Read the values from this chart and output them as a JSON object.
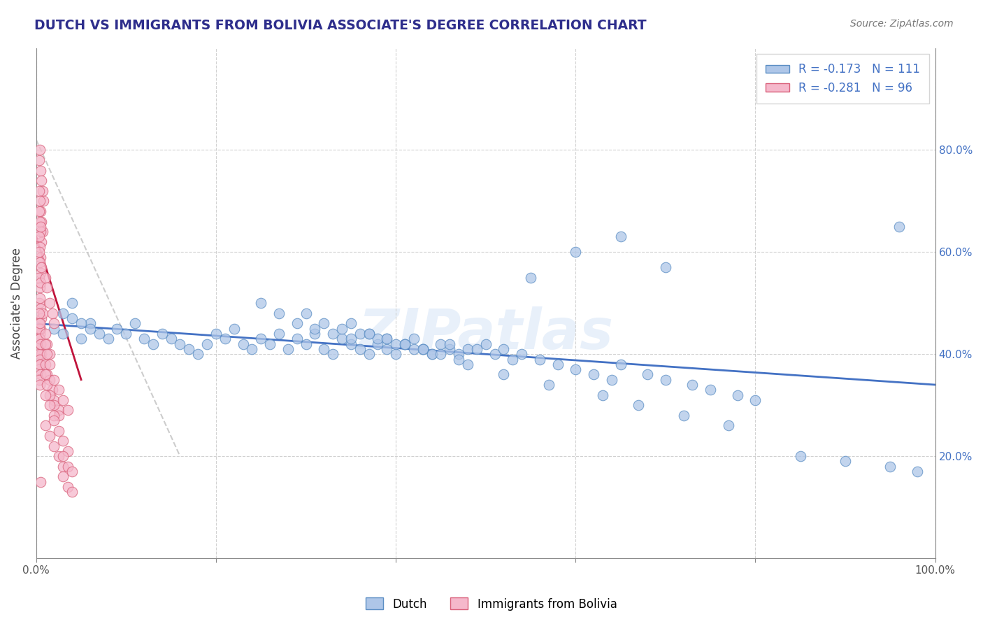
{
  "title": "DUTCH VS IMMIGRANTS FROM BOLIVIA ASSOCIATE'S DEGREE CORRELATION CHART",
  "source": "Source: ZipAtlas.com",
  "ylabel": "Associate's Degree",
  "legend_label1": "Dutch",
  "legend_label2": "Immigrants from Bolivia",
  "R1": -0.173,
  "N1": 111,
  "R2": -0.281,
  "N2": 96,
  "xlim": [
    0.0,
    1.0
  ],
  "ylim": [
    0.0,
    1.0
  ],
  "yticks": [
    0.2,
    0.4,
    0.6,
    0.8
  ],
  "ytick_labels": [
    "20.0%",
    "40.0%",
    "60.0%",
    "80.0%"
  ],
  "xtick_labels": [
    "0.0%",
    "",
    "",
    "",
    "",
    "100.0%"
  ],
  "color_dutch_fill": "#aec6e8",
  "color_dutch_edge": "#5b8ec4",
  "color_bolivia_fill": "#f5b8cb",
  "color_bolivia_edge": "#d9607a",
  "color_line_dutch": "#4472c4",
  "color_line_bolivia": "#c0143c",
  "color_dashed": "#b8b8b8",
  "background_color": "#ffffff",
  "grid_color": "#cccccc",
  "watermark": "ZIPatlas",
  "title_color": "#2e2e8c",
  "dutch_x": [
    0.02,
    0.03,
    0.04,
    0.05,
    0.06,
    0.03,
    0.04,
    0.05,
    0.06,
    0.07,
    0.08,
    0.09,
    0.1,
    0.11,
    0.12,
    0.13,
    0.14,
    0.15,
    0.16,
    0.17,
    0.18,
    0.19,
    0.2,
    0.21,
    0.22,
    0.23,
    0.24,
    0.25,
    0.26,
    0.27,
    0.28,
    0.29,
    0.3,
    0.31,
    0.32,
    0.33,
    0.34,
    0.35,
    0.36,
    0.37,
    0.38,
    0.39,
    0.4,
    0.41,
    0.42,
    0.43,
    0.44,
    0.45,
    0.46,
    0.47,
    0.25,
    0.27,
    0.29,
    0.31,
    0.33,
    0.35,
    0.37,
    0.39,
    0.41,
    0.43,
    0.3,
    0.32,
    0.34,
    0.36,
    0.38,
    0.4,
    0.42,
    0.44,
    0.46,
    0.48,
    0.35,
    0.37,
    0.39,
    0.41,
    0.43,
    0.45,
    0.47,
    0.49,
    0.51,
    0.53,
    0.5,
    0.52,
    0.54,
    0.56,
    0.58,
    0.6,
    0.62,
    0.64,
    0.65,
    0.68,
    0.7,
    0.73,
    0.75,
    0.78,
    0.8,
    0.85,
    0.9,
    0.95,
    0.98,
    0.96,
    0.55,
    0.6,
    0.65,
    0.7,
    0.48,
    0.52,
    0.57,
    0.63,
    0.67,
    0.72,
    0.77
  ],
  "dutch_y": [
    0.45,
    0.44,
    0.47,
    0.43,
    0.46,
    0.48,
    0.5,
    0.46,
    0.45,
    0.44,
    0.43,
    0.45,
    0.44,
    0.46,
    0.43,
    0.42,
    0.44,
    0.43,
    0.42,
    0.41,
    0.4,
    0.42,
    0.44,
    0.43,
    0.45,
    0.42,
    0.41,
    0.43,
    0.42,
    0.44,
    0.41,
    0.43,
    0.42,
    0.44,
    0.41,
    0.4,
    0.43,
    0.42,
    0.41,
    0.4,
    0.42,
    0.41,
    0.4,
    0.42,
    0.43,
    0.41,
    0.4,
    0.42,
    0.41,
    0.4,
    0.5,
    0.48,
    0.46,
    0.45,
    0.44,
    0.43,
    0.44,
    0.43,
    0.42,
    0.41,
    0.48,
    0.46,
    0.45,
    0.44,
    0.43,
    0.42,
    0.41,
    0.4,
    0.42,
    0.41,
    0.46,
    0.44,
    0.43,
    0.42,
    0.41,
    0.4,
    0.39,
    0.41,
    0.4,
    0.39,
    0.42,
    0.41,
    0.4,
    0.39,
    0.38,
    0.37,
    0.36,
    0.35,
    0.38,
    0.36,
    0.35,
    0.34,
    0.33,
    0.32,
    0.31,
    0.2,
    0.19,
    0.18,
    0.17,
    0.65,
    0.55,
    0.6,
    0.63,
    0.57,
    0.38,
    0.36,
    0.34,
    0.32,
    0.3,
    0.28,
    0.26
  ],
  "bolivia_x": [
    0.003,
    0.004,
    0.005,
    0.006,
    0.007,
    0.008,
    0.003,
    0.004,
    0.005,
    0.006,
    0.007,
    0.003,
    0.004,
    0.005,
    0.006,
    0.003,
    0.004,
    0.005,
    0.003,
    0.004,
    0.005,
    0.006,
    0.003,
    0.004,
    0.005,
    0.003,
    0.004,
    0.005,
    0.006,
    0.007,
    0.003,
    0.004,
    0.005,
    0.003,
    0.004,
    0.005,
    0.006,
    0.003,
    0.004,
    0.005,
    0.003,
    0.004,
    0.005,
    0.003,
    0.004,
    0.003,
    0.004,
    0.005,
    0.003,
    0.004,
    0.01,
    0.012,
    0.015,
    0.018,
    0.02,
    0.01,
    0.012,
    0.015,
    0.01,
    0.012,
    0.015,
    0.018,
    0.02,
    0.025,
    0.01,
    0.012,
    0.015,
    0.01,
    0.012,
    0.015,
    0.02,
    0.025,
    0.01,
    0.015,
    0.02,
    0.01,
    0.015,
    0.02,
    0.025,
    0.03,
    0.02,
    0.025,
    0.03,
    0.035,
    0.02,
    0.025,
    0.03,
    0.035,
    0.03,
    0.035,
    0.04,
    0.03,
    0.035,
    0.04,
    0.005,
    0.005
  ],
  "bolivia_y": [
    0.78,
    0.8,
    0.76,
    0.74,
    0.72,
    0.7,
    0.72,
    0.7,
    0.68,
    0.66,
    0.64,
    0.68,
    0.66,
    0.64,
    0.62,
    0.63,
    0.61,
    0.59,
    0.6,
    0.58,
    0.56,
    0.57,
    0.55,
    0.53,
    0.54,
    0.5,
    0.51,
    0.49,
    0.47,
    0.48,
    0.46,
    0.44,
    0.45,
    0.43,
    0.41,
    0.42,
    0.4,
    0.4,
    0.39,
    0.38,
    0.37,
    0.38,
    0.36,
    0.35,
    0.34,
    0.45,
    0.43,
    0.42,
    0.48,
    0.46,
    0.55,
    0.53,
    0.5,
    0.48,
    0.46,
    0.44,
    0.42,
    0.4,
    0.38,
    0.36,
    0.35,
    0.33,
    0.31,
    0.29,
    0.42,
    0.4,
    0.38,
    0.36,
    0.34,
    0.32,
    0.3,
    0.28,
    0.32,
    0.3,
    0.28,
    0.26,
    0.24,
    0.22,
    0.2,
    0.18,
    0.35,
    0.33,
    0.31,
    0.29,
    0.27,
    0.25,
    0.23,
    0.21,
    0.2,
    0.18,
    0.17,
    0.16,
    0.14,
    0.13,
    0.65,
    0.15
  ],
  "dutch_line_x": [
    0.0,
    1.0
  ],
  "dutch_line_y": [
    0.46,
    0.34
  ],
  "bolivia_line_x": [
    0.0,
    0.05
  ],
  "bolivia_line_y": [
    0.63,
    0.35
  ],
  "dash_line_x": [
    0.0,
    0.16
  ],
  "dash_line_y": [
    0.82,
    0.2
  ]
}
